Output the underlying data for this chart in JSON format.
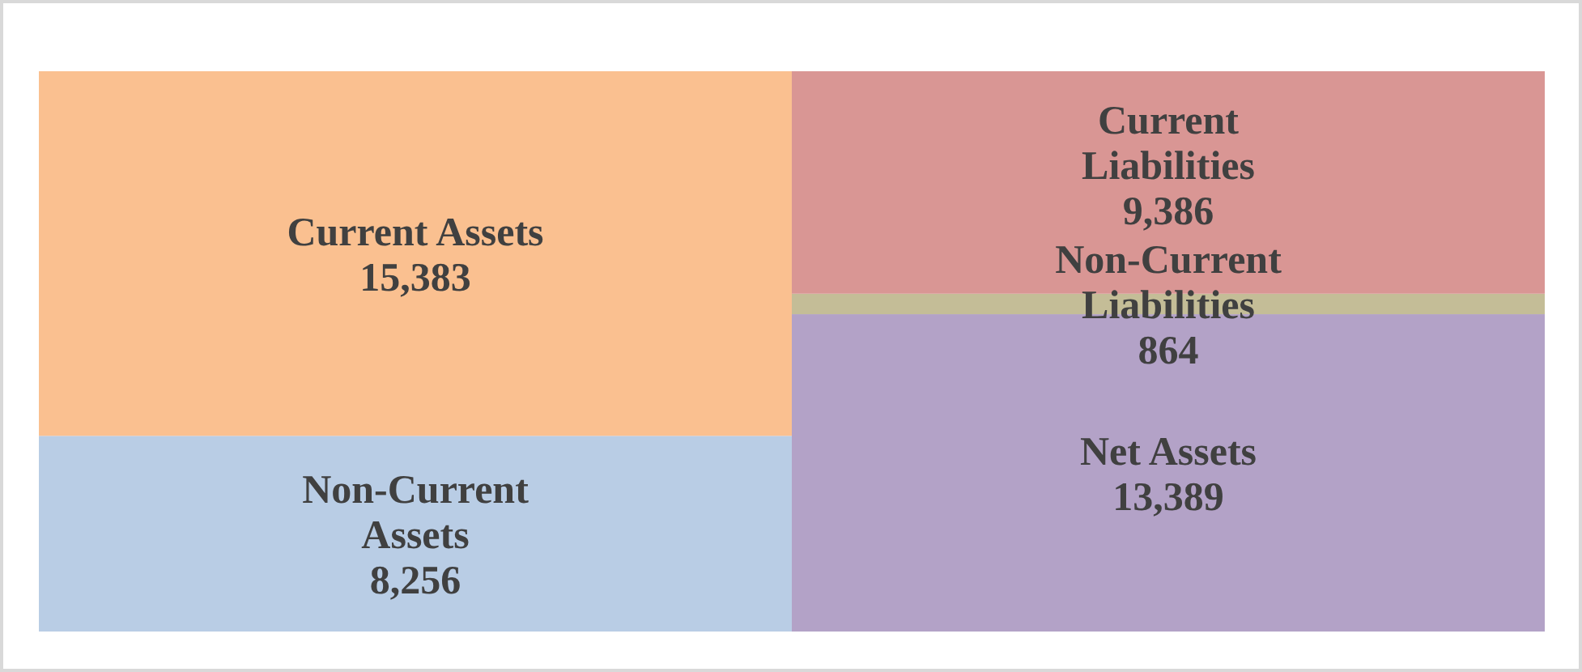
{
  "chart_data": {
    "type": "bar",
    "stacked": true,
    "tick_labels": false,
    "categories": [
      null,
      null
    ],
    "series": [
      {
        "name": "Non-Current Assets",
        "color": "#b9cde5",
        "values": [
          8256,
          null
        ],
        "value_labels": [
          "8,256",
          null
        ]
      },
      {
        "name": "Current Assets",
        "color": "#fac090",
        "values": [
          15383,
          null
        ],
        "value_labels": [
          "15,383",
          null
        ]
      },
      {
        "name": "Net Assets",
        "color": "#b3a2c7",
        "values": [
          null,
          13389
        ],
        "value_labels": [
          null,
          "13,389"
        ]
      },
      {
        "name": "Non-Current Liabilities",
        "color": "#c4bd97",
        "values": [
          null,
          864
        ],
        "value_labels": [
          null,
          "864"
        ]
      },
      {
        "name": "Current Liabilities",
        "color": "#d99694",
        "values": [
          null,
          9386
        ],
        "value_labels": [
          null,
          "9,386"
        ]
      }
    ]
  }
}
